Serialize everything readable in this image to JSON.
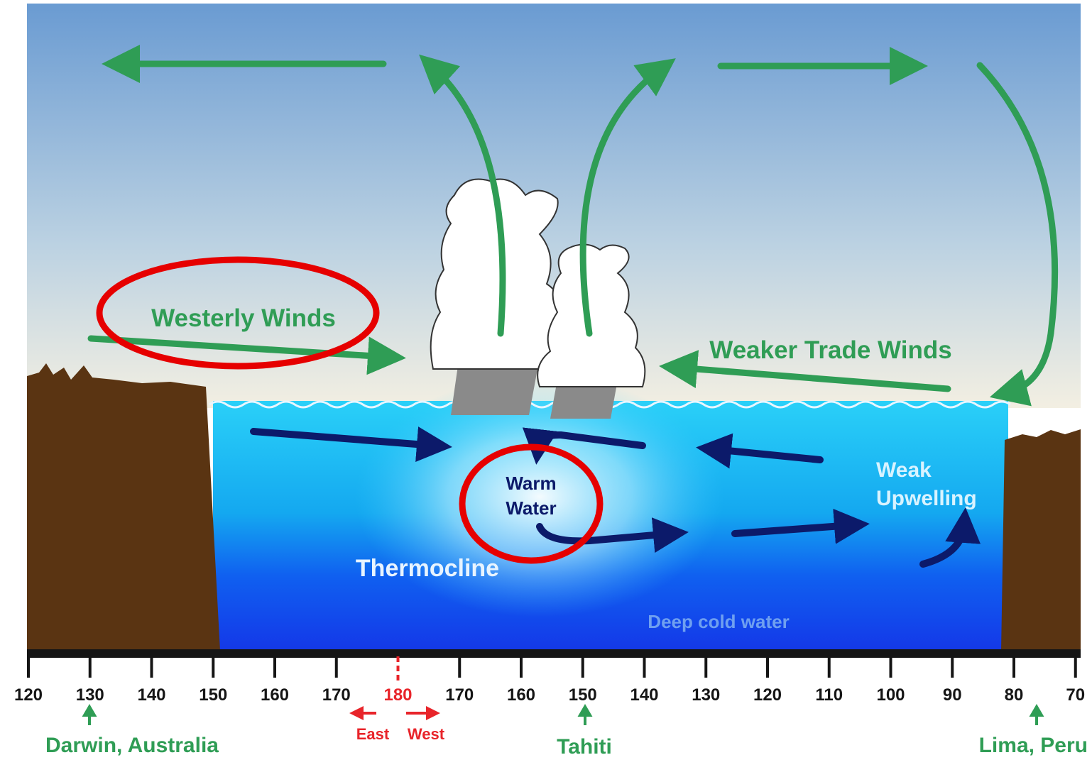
{
  "labels": {
    "westerly": "Westerly Winds",
    "trade": "Weaker Trade Winds",
    "warm": [
      "Warm",
      "Water"
    ],
    "thermocline": "Thermocline",
    "deep": "Deep cold water",
    "upwelling": [
      "Weak",
      "Upwelling"
    ]
  },
  "axis": {
    "ticks": [
      "120",
      "130",
      "140",
      "150",
      "160",
      "170",
      "180",
      "170",
      "160",
      "150",
      "140",
      "130",
      "120",
      "110",
      "100",
      "90",
      "80",
      "70"
    ],
    "east": "East",
    "west": "West"
  },
  "places": {
    "darwin": "Darwin, Australia",
    "tahiti": "Tahiti",
    "lima": "Lima, Peru"
  }
}
